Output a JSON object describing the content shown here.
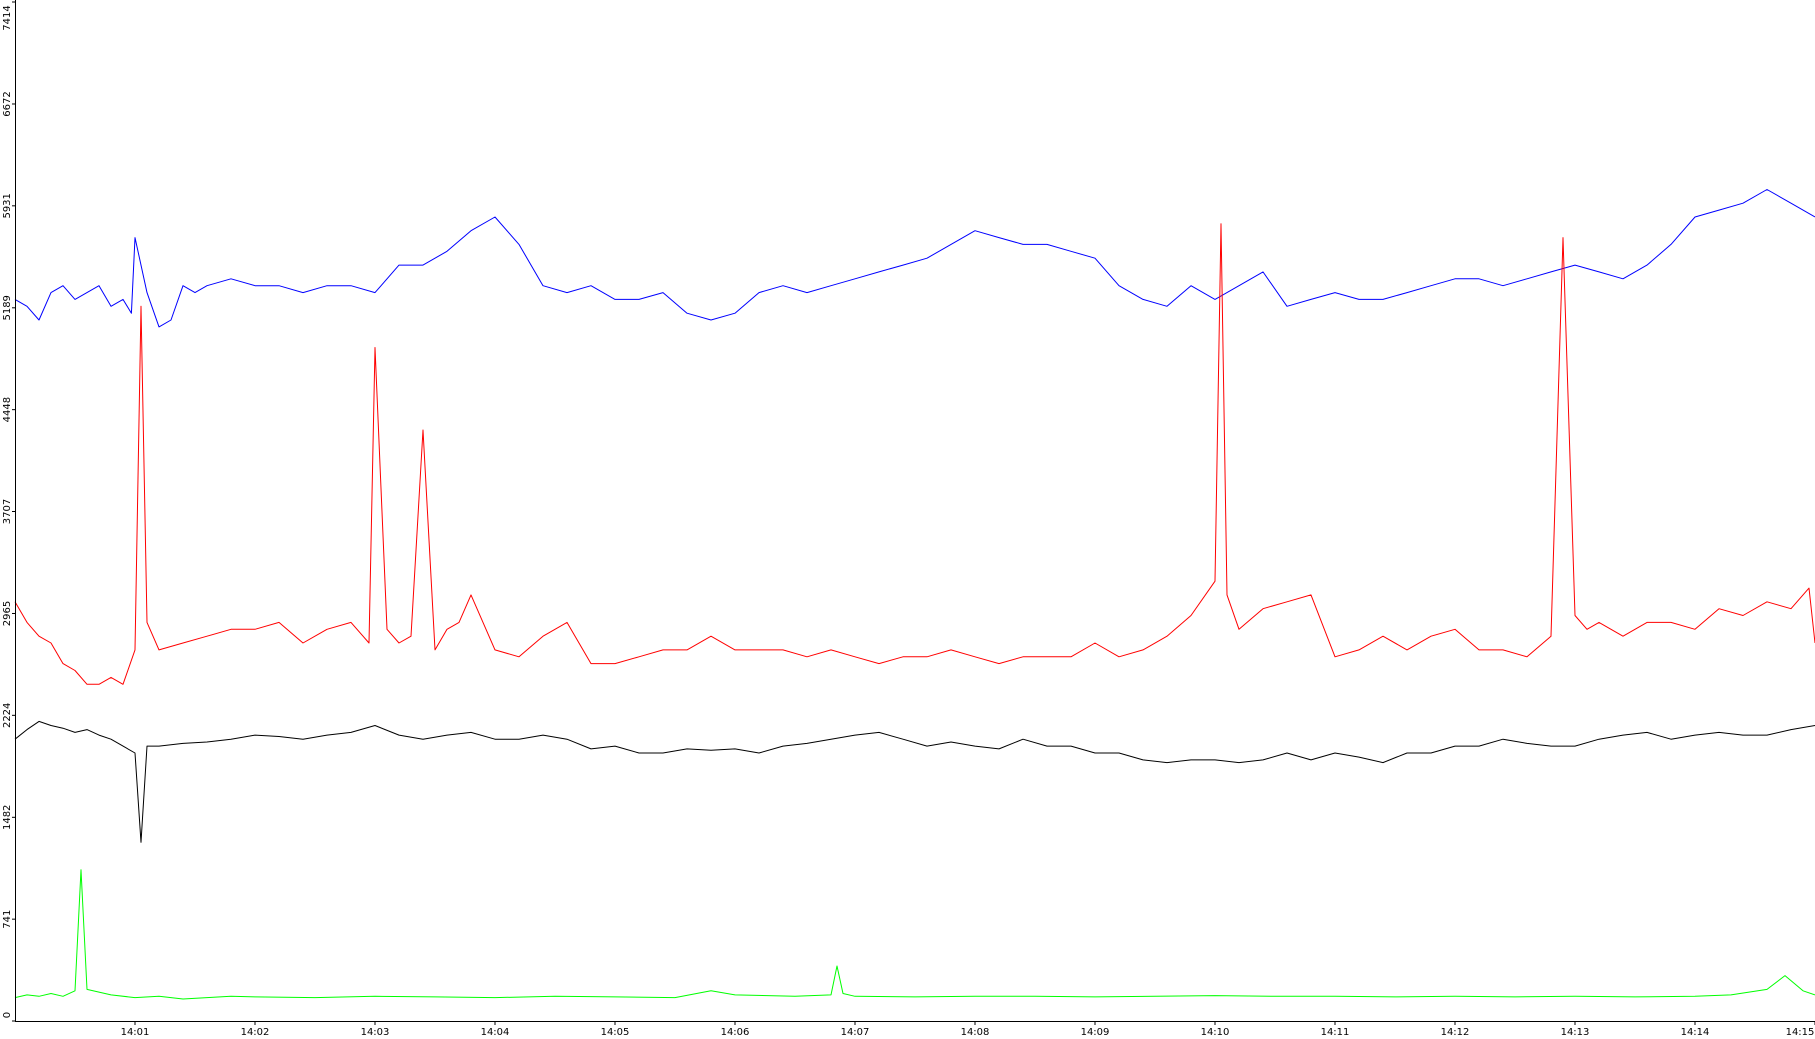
{
  "chart_data": {
    "type": "line",
    "title": "",
    "xlabel": "",
    "ylabel": "",
    "ylim": [
      0,
      7414
    ],
    "xlim": [
      "14:00",
      "14:15"
    ],
    "grid": false,
    "legend": "none",
    "y_ticks": [
      "0",
      "741",
      "1482",
      "2224",
      "2965",
      "3707",
      "4448",
      "5189",
      "5931",
      "6672",
      "7414"
    ],
    "x_ticks": [
      "14:01",
      "14:02",
      "14:03",
      "14:04",
      "14:05",
      "14:06",
      "14:07",
      "14:08",
      "14:09",
      "14:10",
      "14:11",
      "14:12",
      "14:13",
      "14:14",
      "14:15"
    ],
    "x_tick_minutes": [
      1,
      2,
      3,
      4,
      5,
      6,
      7,
      8,
      9,
      10,
      11,
      12,
      13,
      14,
      15
    ],
    "series": [
      {
        "color": "#0000ff",
        "x_minutes": [
          0,
          0.1,
          0.2,
          0.3,
          0.4,
          0.5,
          0.6,
          0.7,
          0.8,
          0.9,
          0.97,
          1.0,
          1.1,
          1.2,
          1.3,
          1.4,
          1.5,
          1.6,
          1.8,
          2.0,
          2.2,
          2.4,
          2.6,
          2.8,
          3.0,
          3.2,
          3.4,
          3.6,
          3.8,
          4.0,
          4.2,
          4.4,
          4.6,
          4.8,
          5.0,
          5.2,
          5.4,
          5.6,
          5.8,
          6.0,
          6.2,
          6.4,
          6.6,
          6.8,
          7.0,
          7.2,
          7.4,
          7.6,
          7.8,
          8.0,
          8.2,
          8.4,
          8.6,
          8.8,
          9.0,
          9.2,
          9.4,
          9.6,
          9.8,
          10.0,
          10.2,
          10.4,
          10.6,
          10.8,
          11.0,
          11.2,
          11.4,
          11.6,
          11.8,
          12.0,
          12.2,
          12.4,
          12.6,
          12.8,
          13.0,
          13.2,
          13.4,
          13.6,
          13.8,
          14.0,
          14.2,
          14.4,
          14.6,
          14.8,
          15.0
        ],
        "values": [
          5250,
          5200,
          5100,
          5300,
          5350,
          5250,
          5300,
          5350,
          5200,
          5250,
          5150,
          5700,
          5300,
          5050,
          5100,
          5350,
          5300,
          5350,
          5400,
          5350,
          5350,
          5300,
          5350,
          5350,
          5300,
          5500,
          5500,
          5600,
          5750,
          5850,
          5650,
          5350,
          5300,
          5350,
          5250,
          5250,
          5300,
          5150,
          5100,
          5150,
          5300,
          5350,
          5300,
          5350,
          5400,
          5450,
          5500,
          5550,
          5650,
          5750,
          5700,
          5650,
          5650,
          5600,
          5550,
          5350,
          5250,
          5200,
          5350,
          5250,
          5350,
          5450,
          5200,
          5250,
          5300,
          5250,
          5250,
          5300,
          5350,
          5400,
          5400,
          5350,
          5400,
          5450,
          5500,
          5450,
          5400,
          5500,
          5650,
          5850,
          5900,
          5950,
          6050,
          5950,
          5850
        ]
      },
      {
        "color": "#ff0000",
        "x_minutes": [
          0,
          0.1,
          0.2,
          0.3,
          0.4,
          0.5,
          0.6,
          0.7,
          0.8,
          0.9,
          1.0,
          1.05,
          1.1,
          1.2,
          1.4,
          1.6,
          1.8,
          2.0,
          2.2,
          2.4,
          2.6,
          2.8,
          2.95,
          3.0,
          3.1,
          3.2,
          3.3,
          3.4,
          3.5,
          3.6,
          3.7,
          3.8,
          4.0,
          4.2,
          4.4,
          4.6,
          4.8,
          5.0,
          5.2,
          5.4,
          5.6,
          5.8,
          6.0,
          6.2,
          6.4,
          6.6,
          6.8,
          7.0,
          7.2,
          7.4,
          7.6,
          7.8,
          8.0,
          8.2,
          8.4,
          8.6,
          8.8,
          9.0,
          9.2,
          9.4,
          9.6,
          9.8,
          10.0,
          10.05,
          10.1,
          10.2,
          10.4,
          10.6,
          10.8,
          11.0,
          11.2,
          11.4,
          11.6,
          11.8,
          12.0,
          12.2,
          12.4,
          12.6,
          12.8,
          12.9,
          13.0,
          13.1,
          13.2,
          13.4,
          13.6,
          13.8,
          14.0,
          14.2,
          14.4,
          14.6,
          14.8,
          14.95,
          15.0
        ],
        "values": [
          3050,
          2900,
          2800,
          2750,
          2600,
          2550,
          2450,
          2450,
          2500,
          2450,
          2700,
          5200,
          2900,
          2700,
          2750,
          2800,
          2850,
          2850,
          2900,
          2750,
          2850,
          2900,
          2750,
          4900,
          2850,
          2750,
          2800,
          4300,
          2700,
          2850,
          2900,
          3100,
          2700,
          2650,
          2800,
          2900,
          2600,
          2600,
          2650,
          2700,
          2700,
          2800,
          2700,
          2700,
          2700,
          2650,
          2700,
          2650,
          2600,
          2650,
          2650,
          2700,
          2650,
          2600,
          2650,
          2650,
          2650,
          2750,
          2650,
          2700,
          2800,
          2950,
          3200,
          5800,
          3100,
          2850,
          3000,
          3050,
          3100,
          2650,
          2700,
          2800,
          2700,
          2800,
          2850,
          2700,
          2700,
          2650,
          2800,
          5700,
          2950,
          2850,
          2900,
          2800,
          2900,
          2900,
          2850,
          3000,
          2950,
          3050,
          3000,
          3150,
          2750
        ]
      },
      {
        "color": "#000000",
        "x_minutes": [
          0,
          0.1,
          0.2,
          0.3,
          0.4,
          0.5,
          0.6,
          0.7,
          0.8,
          0.9,
          1.0,
          1.05,
          1.1,
          1.2,
          1.4,
          1.6,
          1.8,
          2.0,
          2.2,
          2.4,
          2.6,
          2.8,
          3.0,
          3.2,
          3.4,
          3.6,
          3.8,
          4.0,
          4.2,
          4.4,
          4.6,
          4.8,
          5.0,
          5.2,
          5.4,
          5.6,
          5.8,
          6.0,
          6.2,
          6.4,
          6.6,
          6.8,
          7.0,
          7.2,
          7.4,
          7.6,
          7.8,
          8.0,
          8.2,
          8.4,
          8.6,
          8.8,
          9.0,
          9.2,
          9.4,
          9.6,
          9.8,
          10.0,
          10.2,
          10.4,
          10.6,
          10.8,
          11.0,
          11.2,
          11.4,
          11.6,
          11.8,
          12.0,
          12.2,
          12.4,
          12.6,
          12.8,
          13.0,
          13.2,
          13.4,
          13.6,
          13.8,
          14.0,
          14.2,
          14.4,
          14.6,
          14.8,
          15.0
        ],
        "values": [
          2050,
          2120,
          2180,
          2150,
          2130,
          2100,
          2120,
          2080,
          2050,
          2000,
          1950,
          1300,
          2000,
          2000,
          2020,
          2030,
          2050,
          2080,
          2070,
          2050,
          2080,
          2100,
          2150,
          2080,
          2050,
          2080,
          2100,
          2050,
          2050,
          2080,
          2050,
          1980,
          2000,
          1950,
          1950,
          1980,
          1970,
          1980,
          1950,
          2000,
          2020,
          2050,
          2080,
          2100,
          2050,
          2000,
          2030,
          2000,
          1980,
          2050,
          2000,
          2000,
          1950,
          1950,
          1900,
          1880,
          1900,
          1900,
          1880,
          1900,
          1950,
          1900,
          1950,
          1920,
          1880,
          1950,
          1950,
          2000,
          2000,
          2050,
          2020,
          2000,
          2000,
          2050,
          2080,
          2100,
          2050,
          2080,
          2100,
          2080,
          2080,
          2120,
          2150
        ]
      },
      {
        "color": "#00ff00",
        "x_minutes": [
          0,
          0.1,
          0.2,
          0.3,
          0.4,
          0.5,
          0.55,
          0.6,
          0.7,
          0.8,
          1.0,
          1.2,
          1.4,
          1.6,
          1.8,
          2.0,
          2.5,
          3.0,
          3.5,
          4.0,
          4.5,
          5.0,
          5.5,
          5.8,
          6.0,
          6.5,
          6.8,
          6.85,
          6.9,
          7.0,
          7.5,
          8.0,
          8.5,
          9.0,
          9.5,
          10.0,
          10.5,
          11.0,
          11.5,
          12.0,
          12.5,
          13.0,
          13.5,
          14.0,
          14.3,
          14.6,
          14.75,
          14.9,
          15.0
        ],
        "values": [
          170,
          190,
          180,
          200,
          180,
          220,
          1100,
          230,
          210,
          190,
          170,
          180,
          160,
          170,
          180,
          175,
          170,
          180,
          175,
          170,
          180,
          175,
          170,
          220,
          190,
          180,
          190,
          400,
          200,
          180,
          175,
          180,
          180,
          175,
          180,
          185,
          180,
          180,
          175,
          180,
          175,
          180,
          175,
          180,
          190,
          230,
          330,
          220,
          190
        ]
      }
    ]
  }
}
